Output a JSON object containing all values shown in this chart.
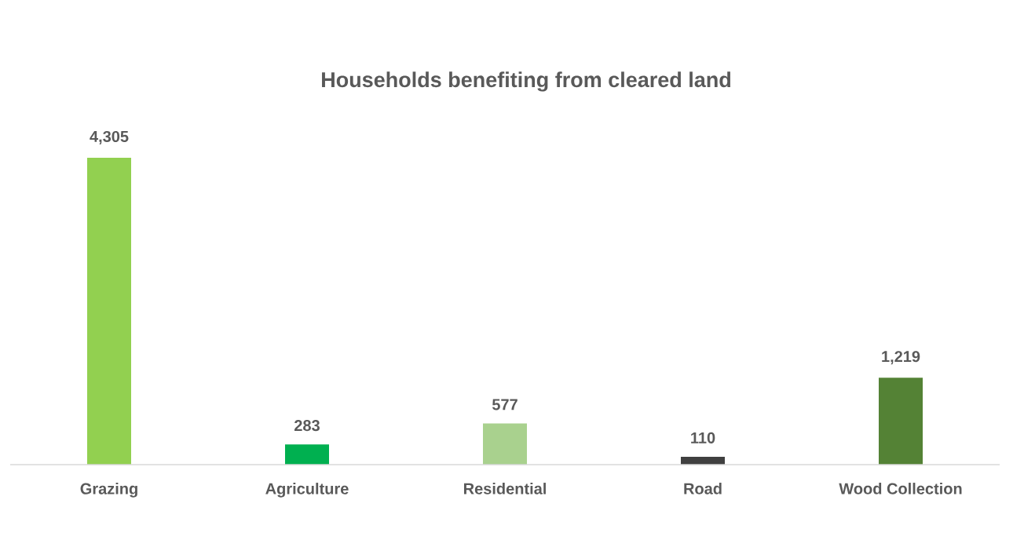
{
  "chart_data": {
    "type": "bar",
    "title": "Households benefiting from cleared land",
    "categories": [
      "Grazing",
      "Agriculture",
      "Residential",
      "Road",
      "Wood Collection"
    ],
    "values": [
      4305,
      283,
      577,
      110,
      1219
    ],
    "colors": [
      "#92d050",
      "#00b050",
      "#a9d18e",
      "#404040",
      "#548235"
    ],
    "value_labels": [
      "4,305",
      "283",
      "577",
      "110",
      "1,219"
    ]
  }
}
